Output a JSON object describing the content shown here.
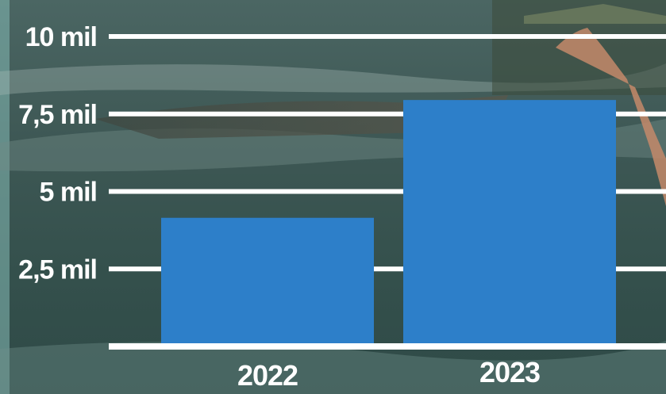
{
  "chart_data": {
    "type": "bar",
    "categories": [
      "2022",
      "2023"
    ],
    "values": [
      4150,
      7950
    ],
    "ylim": [
      0,
      10000
    ],
    "yticks": [
      2500,
      5000,
      7500,
      10000
    ],
    "ytick_labels": [
      "2,5 mil",
      "5 mil",
      "7,5 mil",
      "10 mil"
    ],
    "grid": true,
    "title": "",
    "xlabel": "",
    "ylabel": ""
  },
  "colors": {
    "bar": "#2d7fc9",
    "grid": "#ffffff",
    "text": "#ffffff",
    "background_water": "#3b5a57",
    "background_sand": "#4a4a40"
  }
}
